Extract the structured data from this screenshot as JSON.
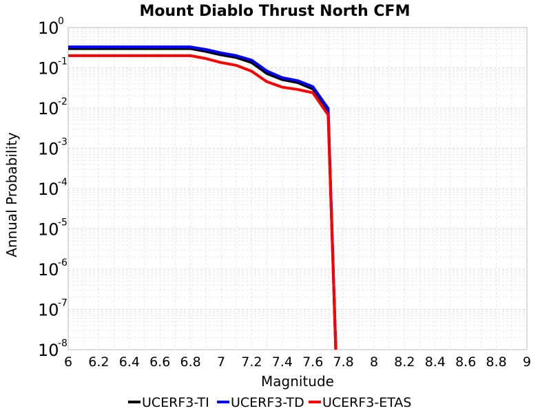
{
  "chart_data": {
    "type": "line",
    "title": "Mount Diablo Thrust North CFM",
    "xlabel": "Magnitude",
    "ylabel": "Annual Probability",
    "xlim": [
      6,
      9
    ],
    "ylim": [
      1e-08,
      1
    ],
    "y_scale": "log",
    "grid": true,
    "legend_position": "bottom",
    "x_ticks": [
      "6",
      "6.2",
      "6.4",
      "6.6",
      "6.8",
      "7",
      "7.2",
      "7.4",
      "7.6",
      "7.8",
      "8",
      "8.2",
      "8.4",
      "8.6",
      "8.8",
      "9"
    ],
    "y_ticks": [
      {
        "base": "10",
        "exp": "0"
      },
      {
        "base": "10",
        "exp": "-1"
      },
      {
        "base": "10",
        "exp": "-2"
      },
      {
        "base": "10",
        "exp": "-3"
      },
      {
        "base": "10",
        "exp": "-4"
      },
      {
        "base": "10",
        "exp": "-5"
      },
      {
        "base": "10",
        "exp": "-6"
      },
      {
        "base": "10",
        "exp": "-7"
      },
      {
        "base": "10",
        "exp": "-8"
      }
    ],
    "series": [
      {
        "name": "UCERF3-TI",
        "color": "#000000",
        "x": [
          6.0,
          6.1,
          6.2,
          6.3,
          6.4,
          6.5,
          6.6,
          6.7,
          6.8,
          6.9,
          7.0,
          7.1,
          7.2,
          7.3,
          7.4,
          7.5,
          7.6,
          7.7,
          7.75
        ],
        "y": [
          0.3,
          0.3,
          0.3,
          0.3,
          0.3,
          0.3,
          0.3,
          0.3,
          0.3,
          0.255,
          0.21,
          0.18,
          0.135,
          0.072,
          0.051,
          0.043,
          0.03,
          0.0088,
          1e-08
        ]
      },
      {
        "name": "UCERF3-TD",
        "color": "#0000ff",
        "x": [
          6.0,
          6.1,
          6.2,
          6.3,
          6.4,
          6.5,
          6.6,
          6.7,
          6.8,
          6.9,
          7.0,
          7.1,
          7.2,
          7.3,
          7.4,
          7.5,
          7.6,
          7.7,
          7.75
        ],
        "y": [
          0.33,
          0.33,
          0.33,
          0.33,
          0.33,
          0.33,
          0.33,
          0.33,
          0.33,
          0.285,
          0.235,
          0.2,
          0.155,
          0.083,
          0.057,
          0.048,
          0.034,
          0.0098,
          1e-08
        ]
      },
      {
        "name": "UCERF3-ETAS",
        "color": "#ff0000",
        "x": [
          6.0,
          6.1,
          6.2,
          6.3,
          6.4,
          6.5,
          6.6,
          6.7,
          6.8,
          6.9,
          7.0,
          7.1,
          7.2,
          7.3,
          7.4,
          7.5,
          7.6,
          7.7,
          7.75
        ],
        "y": [
          0.2,
          0.2,
          0.2,
          0.2,
          0.2,
          0.2,
          0.2,
          0.2,
          0.2,
          0.17,
          0.135,
          0.115,
          0.082,
          0.045,
          0.033,
          0.029,
          0.024,
          0.0068,
          1e-08
        ]
      }
    ]
  }
}
